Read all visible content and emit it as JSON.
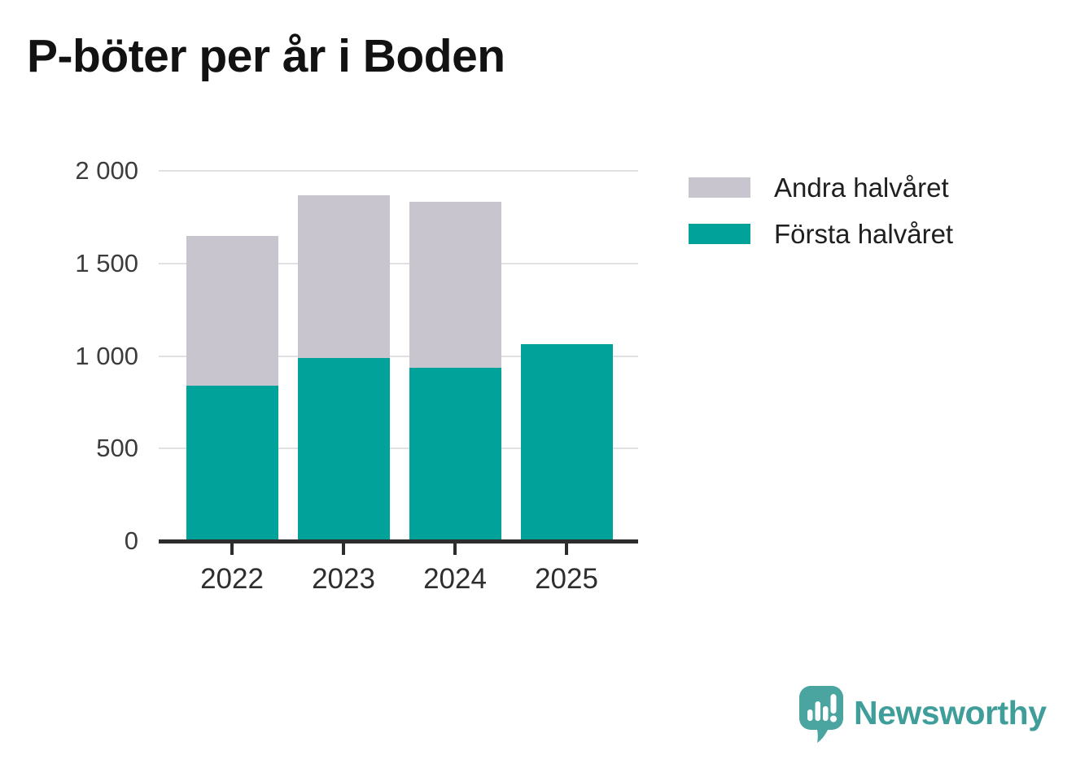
{
  "title": "P-böter per år i Boden",
  "legend": {
    "items": [
      {
        "label": "Andra halvåret",
        "color": "#c8c5cf"
      },
      {
        "label": "Första halvåret",
        "color": "#00a29a"
      }
    ]
  },
  "logo": {
    "brand": "Newsworthy",
    "wordmark_color": "#3f9e99",
    "bubble_color": "#4aa4a0"
  },
  "chart_data": {
    "type": "bar",
    "stacked": true,
    "title": "P-böter per år i Boden",
    "categories": [
      "2022",
      "2023",
      "2024",
      "2025"
    ],
    "series": [
      {
        "name": "Första halvåret",
        "color": "#00a29a",
        "values": [
          840,
          990,
          935,
          1065
        ]
      },
      {
        "name": "Andra halvåret",
        "color": "#c8c5cf",
        "values": [
          810,
          880,
          900,
          0
        ]
      }
    ],
    "totals": [
      1650,
      1870,
      1835,
      1065
    ],
    "xlabel": "",
    "ylabel": "",
    "ylim": [
      0,
      2000
    ],
    "yticks": [
      0,
      500,
      1000,
      1500,
      2000
    ],
    "ytick_labels": [
      "0",
      "500",
      "1 000",
      "1 500",
      "2 000"
    ],
    "grid": "horizontal-light-gray",
    "legend_position": "right-top",
    "axis_color": "#2d2d2d",
    "grid_color": "#e1e1e3",
    "tick_label_color": "#3c3c3c"
  }
}
